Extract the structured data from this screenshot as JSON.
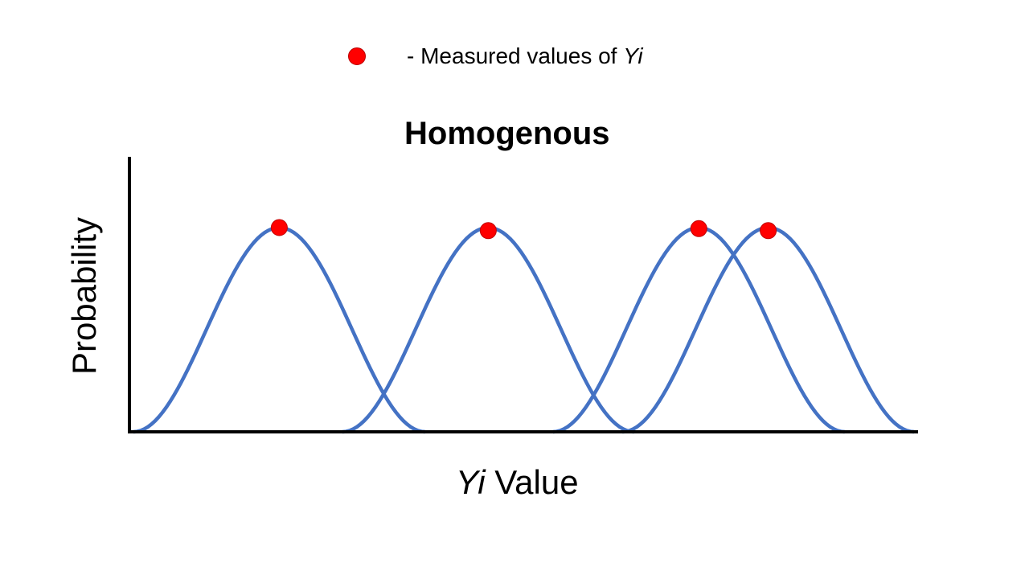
{
  "legend": {
    "marker_color": "#ff0000",
    "prefix": "- Measured values of ",
    "var_name": "Yi"
  },
  "title": "Homogenous",
  "y_axis_label": "Probability",
  "x_axis_label": {
    "var_name": "Yi",
    "suffix": " Value"
  },
  "colors": {
    "curve": "#4472c4",
    "marker": "#ff0000",
    "axis": "#000000"
  },
  "chart_data": {
    "type": "line",
    "title": "Homogenous",
    "xlabel": "Yi Value",
    "ylabel": "Probability",
    "legend": [
      "- Measured values of Yi"
    ],
    "series_shape": "bell curves",
    "peak_y": 1,
    "half_width_x": 0.185,
    "xlim": [
      0,
      1
    ],
    "ylim": [
      0,
      1
    ],
    "means": [
      0.19,
      0.455,
      0.722,
      0.81
    ],
    "marker_heights": [
      1,
      0.985,
      0.995,
      0.985
    ]
  }
}
